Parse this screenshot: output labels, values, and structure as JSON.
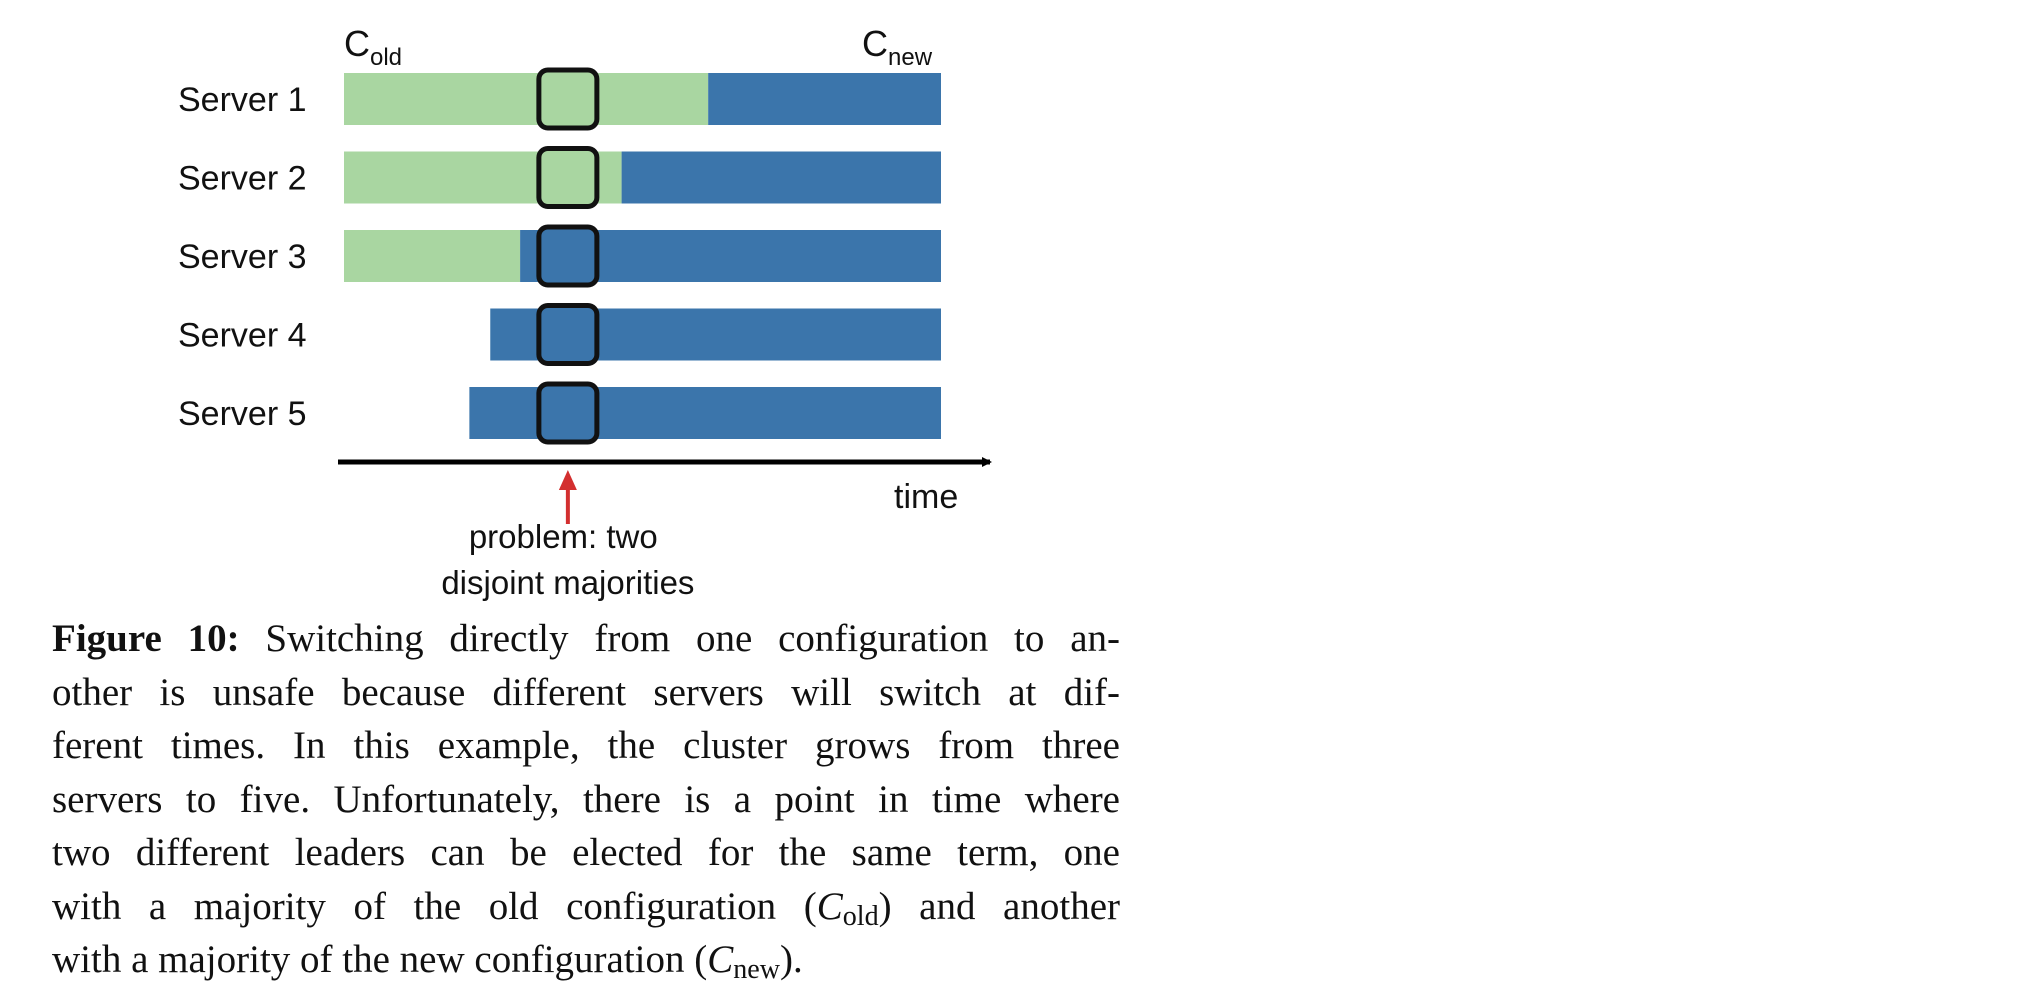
{
  "diagram": {
    "config_labels": {
      "old": {
        "base": "C",
        "sub": "old"
      },
      "new": {
        "base": "C",
        "sub": "new"
      }
    },
    "colors": {
      "old_config": "#a9d6a1",
      "new_config": "#3b75ab",
      "highlight_box_stroke": "#111111",
      "axis": "#000000",
      "problem_arrow": "#d32f2f"
    },
    "servers": [
      {
        "label": "Server 1",
        "bar_start": 0.0,
        "switch_at": 0.61
      },
      {
        "label": "Server 2",
        "bar_start": 0.0,
        "switch_at": 0.465
      },
      {
        "label": "Server 3",
        "bar_start": 0.0,
        "switch_at": 0.295
      },
      {
        "label": "Server 4",
        "bar_start": 0.245,
        "switch_at": 0.245
      },
      {
        "label": "Server 5",
        "bar_start": 0.21,
        "switch_at": 0.21
      }
    ],
    "highlight_at": 0.375,
    "axis_label": "time",
    "annotation_lines": [
      "problem: two",
      "disjoint majorities"
    ]
  },
  "caption": {
    "label": "Figure 10:",
    "lines": [
      "Switching directly from one configuration to an-",
      "other is unsafe because different servers will switch at dif-",
      "ferent times. In this example, the cluster grows from three",
      "servers to five. Unfortunately, there is a point in time where",
      "two different leaders can be elected for the same term, one"
    ],
    "line6": {
      "before": "with a majority of the old configuration (",
      "math_base": "C",
      "math_sub": "old",
      "after": ") and another"
    },
    "line7": {
      "before": "with a majority of the new configuration (",
      "math_base": "C",
      "math_sub": "new",
      "after": ")."
    }
  }
}
